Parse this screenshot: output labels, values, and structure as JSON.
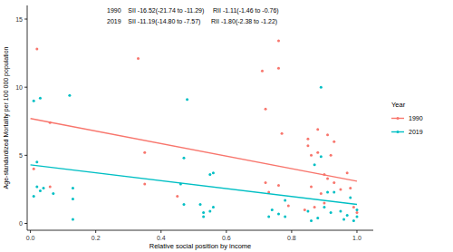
{
  "chart_data": {
    "type": "scatter",
    "x_label": "Relative social position by income",
    "y_label": "Age-standardized Mortality per 100 000 population",
    "annotations": [
      "1990    SII -16.52(-21.74 to -11.29)     RII -1.11(-1.46 to -0.76)",
      "2019    SII -11.19(-14.80 to -7.57)      RII -1.80(-2.38 to -1.22)"
    ],
    "legend_title": "Year",
    "legend": "right",
    "grid": false,
    "xlim": [
      -0.01,
      1.05
    ],
    "ylim": [
      -0.5,
      16
    ],
    "xticks": [
      {
        "value": 0,
        "label": "0.0"
      },
      {
        "value": 0.2,
        "label": "0.2"
      },
      {
        "value": 0.4,
        "label": "0.4"
      },
      {
        "value": 0.6,
        "label": "0.6"
      },
      {
        "value": 0.8,
        "label": "0.8"
      },
      {
        "value": 1,
        "label": "1.0"
      }
    ],
    "yticks": [
      0,
      5,
      10,
      15
    ],
    "series": [
      {
        "name": "1990",
        "color": "#F8766D",
        "x": [
          0.01,
          0.02,
          0.06,
          0.06,
          0.33,
          0.35,
          0.35,
          0.45,
          0.71,
          0.72,
          0.72,
          0.73,
          0.76,
          0.76,
          0.77,
          0.76,
          0.79,
          0.85,
          0.85,
          0.86,
          0.86,
          0.88,
          0.88,
          0.89,
          0.9,
          0.9,
          0.91,
          0.91,
          0.92,
          0.93,
          0.93,
          0.95,
          0.97,
          0.98,
          0.99,
          1.0,
          0.84,
          0.87
        ],
        "values": [
          4.0,
          12.8,
          7.4,
          2.7,
          12.1,
          5.2,
          2.9,
          2.0,
          11.2,
          8.4,
          3.0,
          2.3,
          13.4,
          11.4,
          6.6,
          2.8,
          1.3,
          6.2,
          5.7,
          5.0,
          2.7,
          6.9,
          5.2,
          2.2,
          1.5,
          3.6,
          3.3,
          6.5,
          5.0,
          6.0,
          3.0,
          2.5,
          3.7,
          2.6,
          1.2,
          0.8,
          1.0,
          1.2
        ],
        "fit_x": [
          0,
          1
        ],
        "fit_values": [
          7.7,
          3.1
        ]
      },
      {
        "name": "2019",
        "color": "#00BFC4",
        "x": [
          0.01,
          0.01,
          0.02,
          0.02,
          0.03,
          0.04,
          0.03,
          0.07,
          0.12,
          0.13,
          0.13,
          0.13,
          0.46,
          0.47,
          0.47,
          0.48,
          0.52,
          0.53,
          0.53,
          0.55,
          0.56,
          0.56,
          0.55,
          0.73,
          0.74,
          0.76,
          0.78,
          0.78,
          0.85,
          0.86,
          0.87,
          0.88,
          0.89,
          0.89,
          0.9,
          0.91,
          0.92,
          0.93,
          0.95,
          0.96,
          0.97,
          0.98,
          0.99,
          1.0,
          1.0
        ],
        "values": [
          2.0,
          9.0,
          4.5,
          2.7,
          2.4,
          2.6,
          9.2,
          2.2,
          9.4,
          2.6,
          1.8,
          0.3,
          2.9,
          4.8,
          1.4,
          9.1,
          1.4,
          0.8,
          0.5,
          3.6,
          3.7,
          1.2,
          0.9,
          0.5,
          1.0,
          0.7,
          1.7,
          0.5,
          0.9,
          0.2,
          4.3,
          0.4,
          10.0,
          4.9,
          1.2,
          2.3,
          0.8,
          2.3,
          0.9,
          0.3,
          0.6,
          1.9,
          0.2,
          0.5,
          1.0
        ],
        "fit_x": [
          0,
          1
        ],
        "fit_values": [
          4.3,
          1.4
        ]
      }
    ]
  }
}
